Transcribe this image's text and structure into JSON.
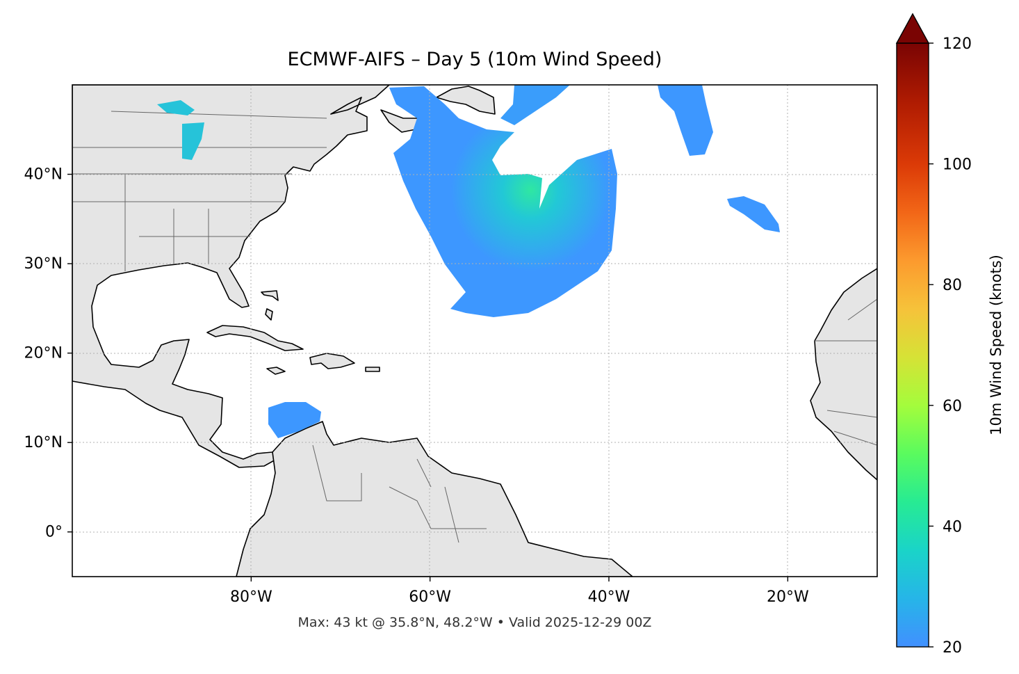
{
  "title": "ECMWF-AIFS – Day 5 (10m Wind Speed)",
  "footer": "Max: 43 kt @ 35.8°N, 48.2°W • Valid 2025-12-29 00Z",
  "map": {
    "extent": {
      "lon": [
        -100,
        -10
      ],
      "lat": [
        -5,
        50
      ]
    },
    "lon_ticks": [
      {
        "value": -80,
        "label": "80°W"
      },
      {
        "value": -60,
        "label": "60°W"
      },
      {
        "value": -40,
        "label": "40°W"
      },
      {
        "value": -20,
        "label": "20°W"
      }
    ],
    "lat_ticks": [
      {
        "value": 40,
        "label": "40°N"
      },
      {
        "value": 30,
        "label": "30°N"
      },
      {
        "value": 20,
        "label": "20°N"
      },
      {
        "value": 10,
        "label": "10°N"
      },
      {
        "value": 0,
        "label": "0°"
      }
    ],
    "grid": true,
    "land_color": "#e5e5e5",
    "wind_color": "#3399ff",
    "max_point": {
      "value_kt": 43,
      "lat": 35.8,
      "lon": -48.2
    }
  },
  "colorbar": {
    "label": "10m Wind Speed (knots)",
    "min": 20,
    "max": 120,
    "extend": "max",
    "ticks": [
      {
        "value": 120,
        "label": "120"
      },
      {
        "value": 100,
        "label": "100"
      },
      {
        "value": 80,
        "label": "80"
      },
      {
        "value": 60,
        "label": "60"
      },
      {
        "value": 40,
        "label": "40"
      },
      {
        "value": 20,
        "label": "20"
      }
    ],
    "colormap": "turbo"
  }
}
